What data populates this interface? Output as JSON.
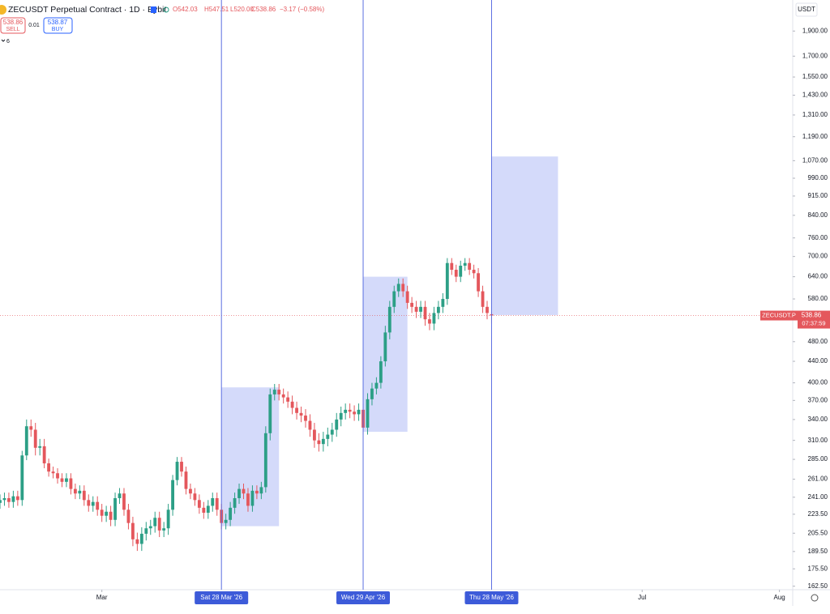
{
  "header": {
    "symbol": "ZECUSDT Perpetual Contract · 1D · Bybit",
    "open": "O542.03",
    "high": "H547.51",
    "low": "L520.00",
    "close": "C538.86",
    "change": "−3.17 (−0.58%)",
    "sell_price": "538.86",
    "sell": "SELL",
    "spread": "0.01",
    "buy_price": "538.87",
    "buy": "BUY",
    "indicators": "6"
  },
  "chart_data": {
    "type": "candlestick",
    "currency": "USDT",
    "log_scale": true,
    "up_color": "#2c9f86",
    "down_color": "#e4575c",
    "x": [
      "2026-02-06",
      "2026-02-07",
      "2026-02-08",
      "2026-02-09",
      "2026-02-10",
      "2026-02-11",
      "2026-02-12",
      "2026-02-13",
      "2026-02-14",
      "2026-02-15",
      "2026-02-16",
      "2026-02-17",
      "2026-02-18",
      "2026-02-19",
      "2026-02-20",
      "2026-02-21",
      "2026-02-22",
      "2026-02-23",
      "2026-02-24",
      "2026-02-25",
      "2026-02-26",
      "2026-02-27",
      "2026-02-28",
      "2026-03-01",
      "2026-03-02",
      "2026-03-03",
      "2026-03-04",
      "2026-03-05",
      "2026-03-06",
      "2026-03-07",
      "2026-03-08",
      "2026-03-09",
      "2026-03-10",
      "2026-03-11",
      "2026-03-12",
      "2026-03-13",
      "2026-03-14",
      "2026-03-15",
      "2026-03-16",
      "2026-03-17",
      "2026-03-18",
      "2026-03-19",
      "2026-03-20",
      "2026-03-21",
      "2026-03-22",
      "2026-03-23",
      "2026-03-24",
      "2026-03-25",
      "2026-03-26",
      "2026-03-27",
      "2026-03-28",
      "2026-03-29",
      "2026-03-30",
      "2026-03-31",
      "2026-04-01",
      "2026-04-02",
      "2026-04-03",
      "2026-04-04",
      "2026-04-05",
      "2026-04-06",
      "2026-04-07",
      "2026-04-08",
      "2026-04-09",
      "2026-04-10",
      "2026-04-11",
      "2026-04-12",
      "2026-04-13",
      "2026-04-14",
      "2026-04-15",
      "2026-04-16",
      "2026-04-17",
      "2026-04-18",
      "2026-04-19",
      "2026-04-20",
      "2026-04-21",
      "2026-04-22",
      "2026-04-23",
      "2026-04-24",
      "2026-04-25",
      "2026-04-26",
      "2026-04-27",
      "2026-04-28",
      "2026-04-29",
      "2026-04-30",
      "2026-05-01",
      "2026-05-02",
      "2026-05-03",
      "2026-05-04",
      "2026-05-05",
      "2026-05-06",
      "2026-05-07",
      "2026-05-08",
      "2026-05-09",
      "2026-05-10",
      "2026-05-11",
      "2026-05-12",
      "2026-05-13",
      "2026-05-14",
      "2026-05-15",
      "2026-05-16",
      "2026-05-17",
      "2026-05-18",
      "2026-05-19",
      "2026-05-20",
      "2026-05-21",
      "2026-05-22",
      "2026-05-23",
      "2026-05-24",
      "2026-05-25",
      "2026-05-26",
      "2026-05-27",
      "2026-05-28"
    ],
    "open": [
      235,
      238,
      240,
      236,
      242,
      238,
      290,
      330,
      325,
      300,
      302,
      280,
      270,
      268,
      262,
      258,
      262,
      250,
      245,
      248,
      238,
      232,
      236,
      228,
      222,
      226,
      218,
      240,
      245,
      228,
      215,
      200,
      196,
      205,
      210,
      212,
      220,
      208,
      210,
      228,
      260,
      282,
      270,
      250,
      245,
      238,
      230,
      225,
      232,
      240,
      228,
      215,
      218,
      230,
      240,
      250,
      245,
      232,
      248,
      245,
      252,
      320,
      380,
      388,
      380,
      375,
      368,
      358,
      350,
      346,
      338,
      325,
      310,
      305,
      312,
      318,
      325,
      340,
      350,
      355,
      352,
      348,
      355,
      328,
      372,
      390,
      400,
      440,
      500,
      560,
      600,
      620,
      600,
      570,
      560,
      548,
      560,
      530,
      520,
      545,
      560,
      580,
      680,
      660,
      640,
      672,
      680,
      660,
      650,
      600,
      560,
      542.03
    ],
    "high": [
      244,
      246,
      246,
      248,
      248,
      296,
      340,
      340,
      335,
      312,
      312,
      286,
      276,
      274,
      268,
      268,
      268,
      256,
      254,
      254,
      244,
      242,
      242,
      234,
      232,
      232,
      246,
      251,
      251,
      234,
      221,
      206,
      211,
      216,
      218,
      226,
      226,
      216,
      234,
      266,
      288,
      288,
      276,
      256,
      251,
      244,
      236,
      238,
      246,
      246,
      234,
      224,
      236,
      246,
      256,
      256,
      251,
      254,
      254,
      258,
      330,
      390,
      398,
      398,
      390,
      385,
      378,
      368,
      360,
      356,
      348,
      335,
      320,
      322,
      328,
      335,
      350,
      360,
      365,
      365,
      362,
      365,
      365,
      382,
      400,
      410,
      450,
      515,
      575,
      615,
      635,
      635,
      615,
      585,
      575,
      575,
      575,
      545,
      560,
      575,
      595,
      695,
      695,
      675,
      687,
      695,
      695,
      675,
      665,
      615,
      575,
      547.51
    ],
    "low": [
      229,
      232,
      230,
      230,
      232,
      232,
      284,
      315,
      290,
      290,
      274,
      264,
      262,
      256,
      252,
      252,
      244,
      239,
      239,
      232,
      226,
      226,
      222,
      216,
      216,
      212,
      212,
      234,
      222,
      209,
      194,
      190,
      190,
      199,
      204,
      206,
      202,
      202,
      204,
      222,
      254,
      264,
      244,
      239,
      232,
      224,
      219,
      219,
      226,
      222,
      209,
      209,
      212,
      224,
      234,
      239,
      226,
      226,
      239,
      239,
      246,
      310,
      370,
      370,
      365,
      358,
      348,
      340,
      336,
      328,
      315,
      300,
      295,
      295,
      302,
      308,
      315,
      330,
      340,
      342,
      338,
      338,
      318,
      318,
      362,
      380,
      390,
      430,
      485,
      545,
      585,
      585,
      555,
      545,
      533,
      533,
      515,
      505,
      505,
      530,
      545,
      565,
      645,
      625,
      625,
      657,
      645,
      635,
      585,
      545,
      530,
      520
    ],
    "close": [
      238,
      240,
      236,
      242,
      238,
      290,
      330,
      325,
      300,
      302,
      280,
      270,
      268,
      262,
      258,
      262,
      250,
      245,
      248,
      238,
      232,
      236,
      228,
      222,
      226,
      218,
      240,
      245,
      228,
      215,
      200,
      196,
      205,
      210,
      212,
      220,
      208,
      210,
      228,
      260,
      282,
      270,
      250,
      245,
      238,
      230,
      225,
      232,
      240,
      228,
      215,
      218,
      230,
      240,
      250,
      245,
      232,
      248,
      245,
      252,
      320,
      380,
      388,
      380,
      375,
      368,
      358,
      350,
      346,
      338,
      325,
      310,
      305,
      312,
      318,
      325,
      340,
      350,
      355,
      352,
      348,
      355,
      328,
      372,
      390,
      400,
      440,
      500,
      560,
      600,
      620,
      600,
      570,
      560,
      548,
      560,
      530,
      520,
      545,
      560,
      580,
      680,
      660,
      640,
      672,
      680,
      660,
      650,
      600,
      560,
      545,
      538.86
    ],
    "ylim": [
      160,
      2180
    ],
    "yticks": [
      {
        "value": 1900,
        "label": "1,900.00"
      },
      {
        "value": 1700,
        "label": "1,700.00"
      },
      {
        "value": 1550,
        "label": "1,550.00"
      },
      {
        "value": 1430,
        "label": "1,430.00"
      },
      {
        "value": 1310,
        "label": "1,310.00"
      },
      {
        "value": 1190,
        "label": "1,190.00"
      },
      {
        "value": 1070,
        "label": "1,070.00"
      },
      {
        "value": 990,
        "label": "990.00"
      },
      {
        "value": 915,
        "label": "915.00"
      },
      {
        "value": 840,
        "label": "840.00"
      },
      {
        "value": 760,
        "label": "760.00"
      },
      {
        "value": 700,
        "label": "700.00"
      },
      {
        "value": 640,
        "label": "640.00"
      },
      {
        "value": 580,
        "label": "580.00"
      },
      {
        "value": 480,
        "label": "480.00"
      },
      {
        "value": 440,
        "label": "440.00"
      },
      {
        "value": 400,
        "label": "400.00"
      },
      {
        "value": 370,
        "label": "370.00"
      },
      {
        "value": 340,
        "label": "340.00"
      },
      {
        "value": 310,
        "label": "310.00"
      },
      {
        "value": 285,
        "label": "285.00"
      },
      {
        "value": 261,
        "label": "261.00"
      },
      {
        "value": 241,
        "label": "241.00"
      },
      {
        "value": 223.5,
        "label": "223.50"
      },
      {
        "value": 205.5,
        "label": "205.50"
      },
      {
        "value": 189.5,
        "label": "189.50"
      },
      {
        "value": 175.5,
        "label": "175.50"
      },
      {
        "value": 162.5,
        "label": "162.50"
      }
    ],
    "xlim": [
      "2026-02-06",
      "2026-08-04"
    ],
    "xticks": [
      {
        "value": "2026-03-01",
        "label": "Mar"
      },
      {
        "value": "2026-07-01",
        "label": "Jul"
      },
      {
        "value": "2026-08-01",
        "label": "Aug"
      }
    ],
    "markers": [
      {
        "value": "2026-03-28",
        "label": "Sat 28 Mar '26"
      },
      {
        "value": "2026-04-29",
        "label": "Wed 29 Apr '26"
      },
      {
        "value": "2026-05-28",
        "label": "Thu 28 May '26"
      }
    ],
    "ranges": [
      {
        "x": [
          "2026-03-28",
          "2026-04-10"
        ],
        "y": [
          212,
          392
        ]
      },
      {
        "x": [
          "2026-04-29",
          "2026-05-09"
        ],
        "y": [
          322,
          640
        ]
      },
      {
        "x": [
          "2026-05-28",
          "2026-06-12"
        ],
        "y": [
          540,
          1090
        ]
      }
    ],
    "price_label": {
      "symbol": "ZECUSDT.P",
      "countdown": "07:37:59"
    }
  }
}
